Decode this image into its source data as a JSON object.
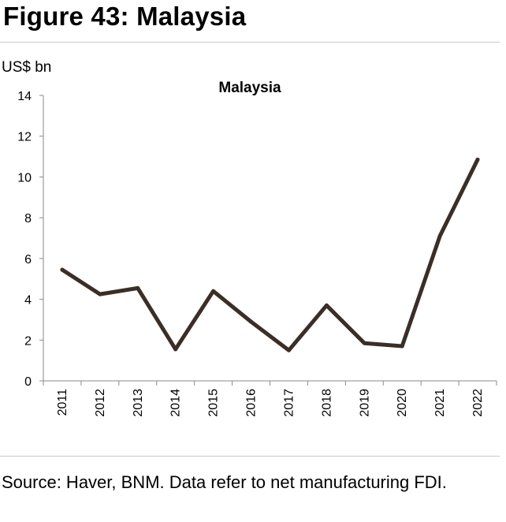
{
  "figure": {
    "title": "Figure 43: Malaysia",
    "unit": "US$ bn",
    "source": "Source: Haver, BNM. Data refer to net manufacturing FDI."
  },
  "colors": {
    "line": "#3b2e26",
    "axis": "#8a8a8a",
    "rule": "#c8c8c8"
  },
  "chart_data": {
    "type": "line",
    "title": "Malaysia",
    "xlabel": "",
    "ylabel": "US$ bn",
    "ylim": [
      0,
      14
    ],
    "yticks": [
      0,
      2,
      4,
      6,
      8,
      10,
      12,
      14
    ],
    "grid": false,
    "legend": "none",
    "categories": [
      "2011",
      "2012",
      "2013",
      "2014",
      "2015",
      "2016",
      "2017",
      "2018",
      "2019",
      "2020",
      "2021",
      "2022"
    ],
    "series": [
      {
        "values": [
          5.45,
          4.25,
          4.55,
          1.55,
          4.4,
          2.9,
          1.5,
          3.7,
          1.85,
          1.7,
          7.1,
          10.85
        ]
      }
    ]
  }
}
